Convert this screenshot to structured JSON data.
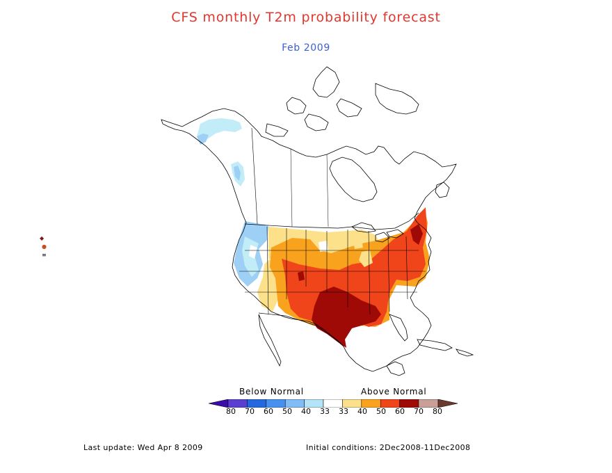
{
  "title": "CFS monthly T2m probability forecast",
  "subtitle": "Feb 2009",
  "legend": {
    "below_label": "Below Normal",
    "above_label": "Above Normal",
    "ticks": [
      "80",
      "70",
      "60",
      "50",
      "40",
      "33",
      "33",
      "40",
      "50",
      "60",
      "70",
      "80"
    ],
    "colors": [
      "#3a0ca8",
      "#5b3fd0",
      "#2468e0",
      "#4890f0",
      "#80bcf5",
      "#b4e4f8",
      "#ffffff",
      "#fde08a",
      "#f8a21e",
      "#f0441a",
      "#a00a06",
      "#c8a098",
      "#6a3a2e"
    ]
  },
  "map": {
    "palette": {
      "below_40": "#9ed0f5",
      "below_33": "#c2ecf8",
      "above_40": "#fde08a",
      "above_50": "#f8a21e",
      "above_60": "#f0441a",
      "above_70": "#a00a06",
      "coastline": "#000000"
    }
  },
  "footer": {
    "last_update": "Last update: Wed Apr 8 2009",
    "initial_conditions": "Initial conditions: 2Dec2008-11Dec2008"
  }
}
